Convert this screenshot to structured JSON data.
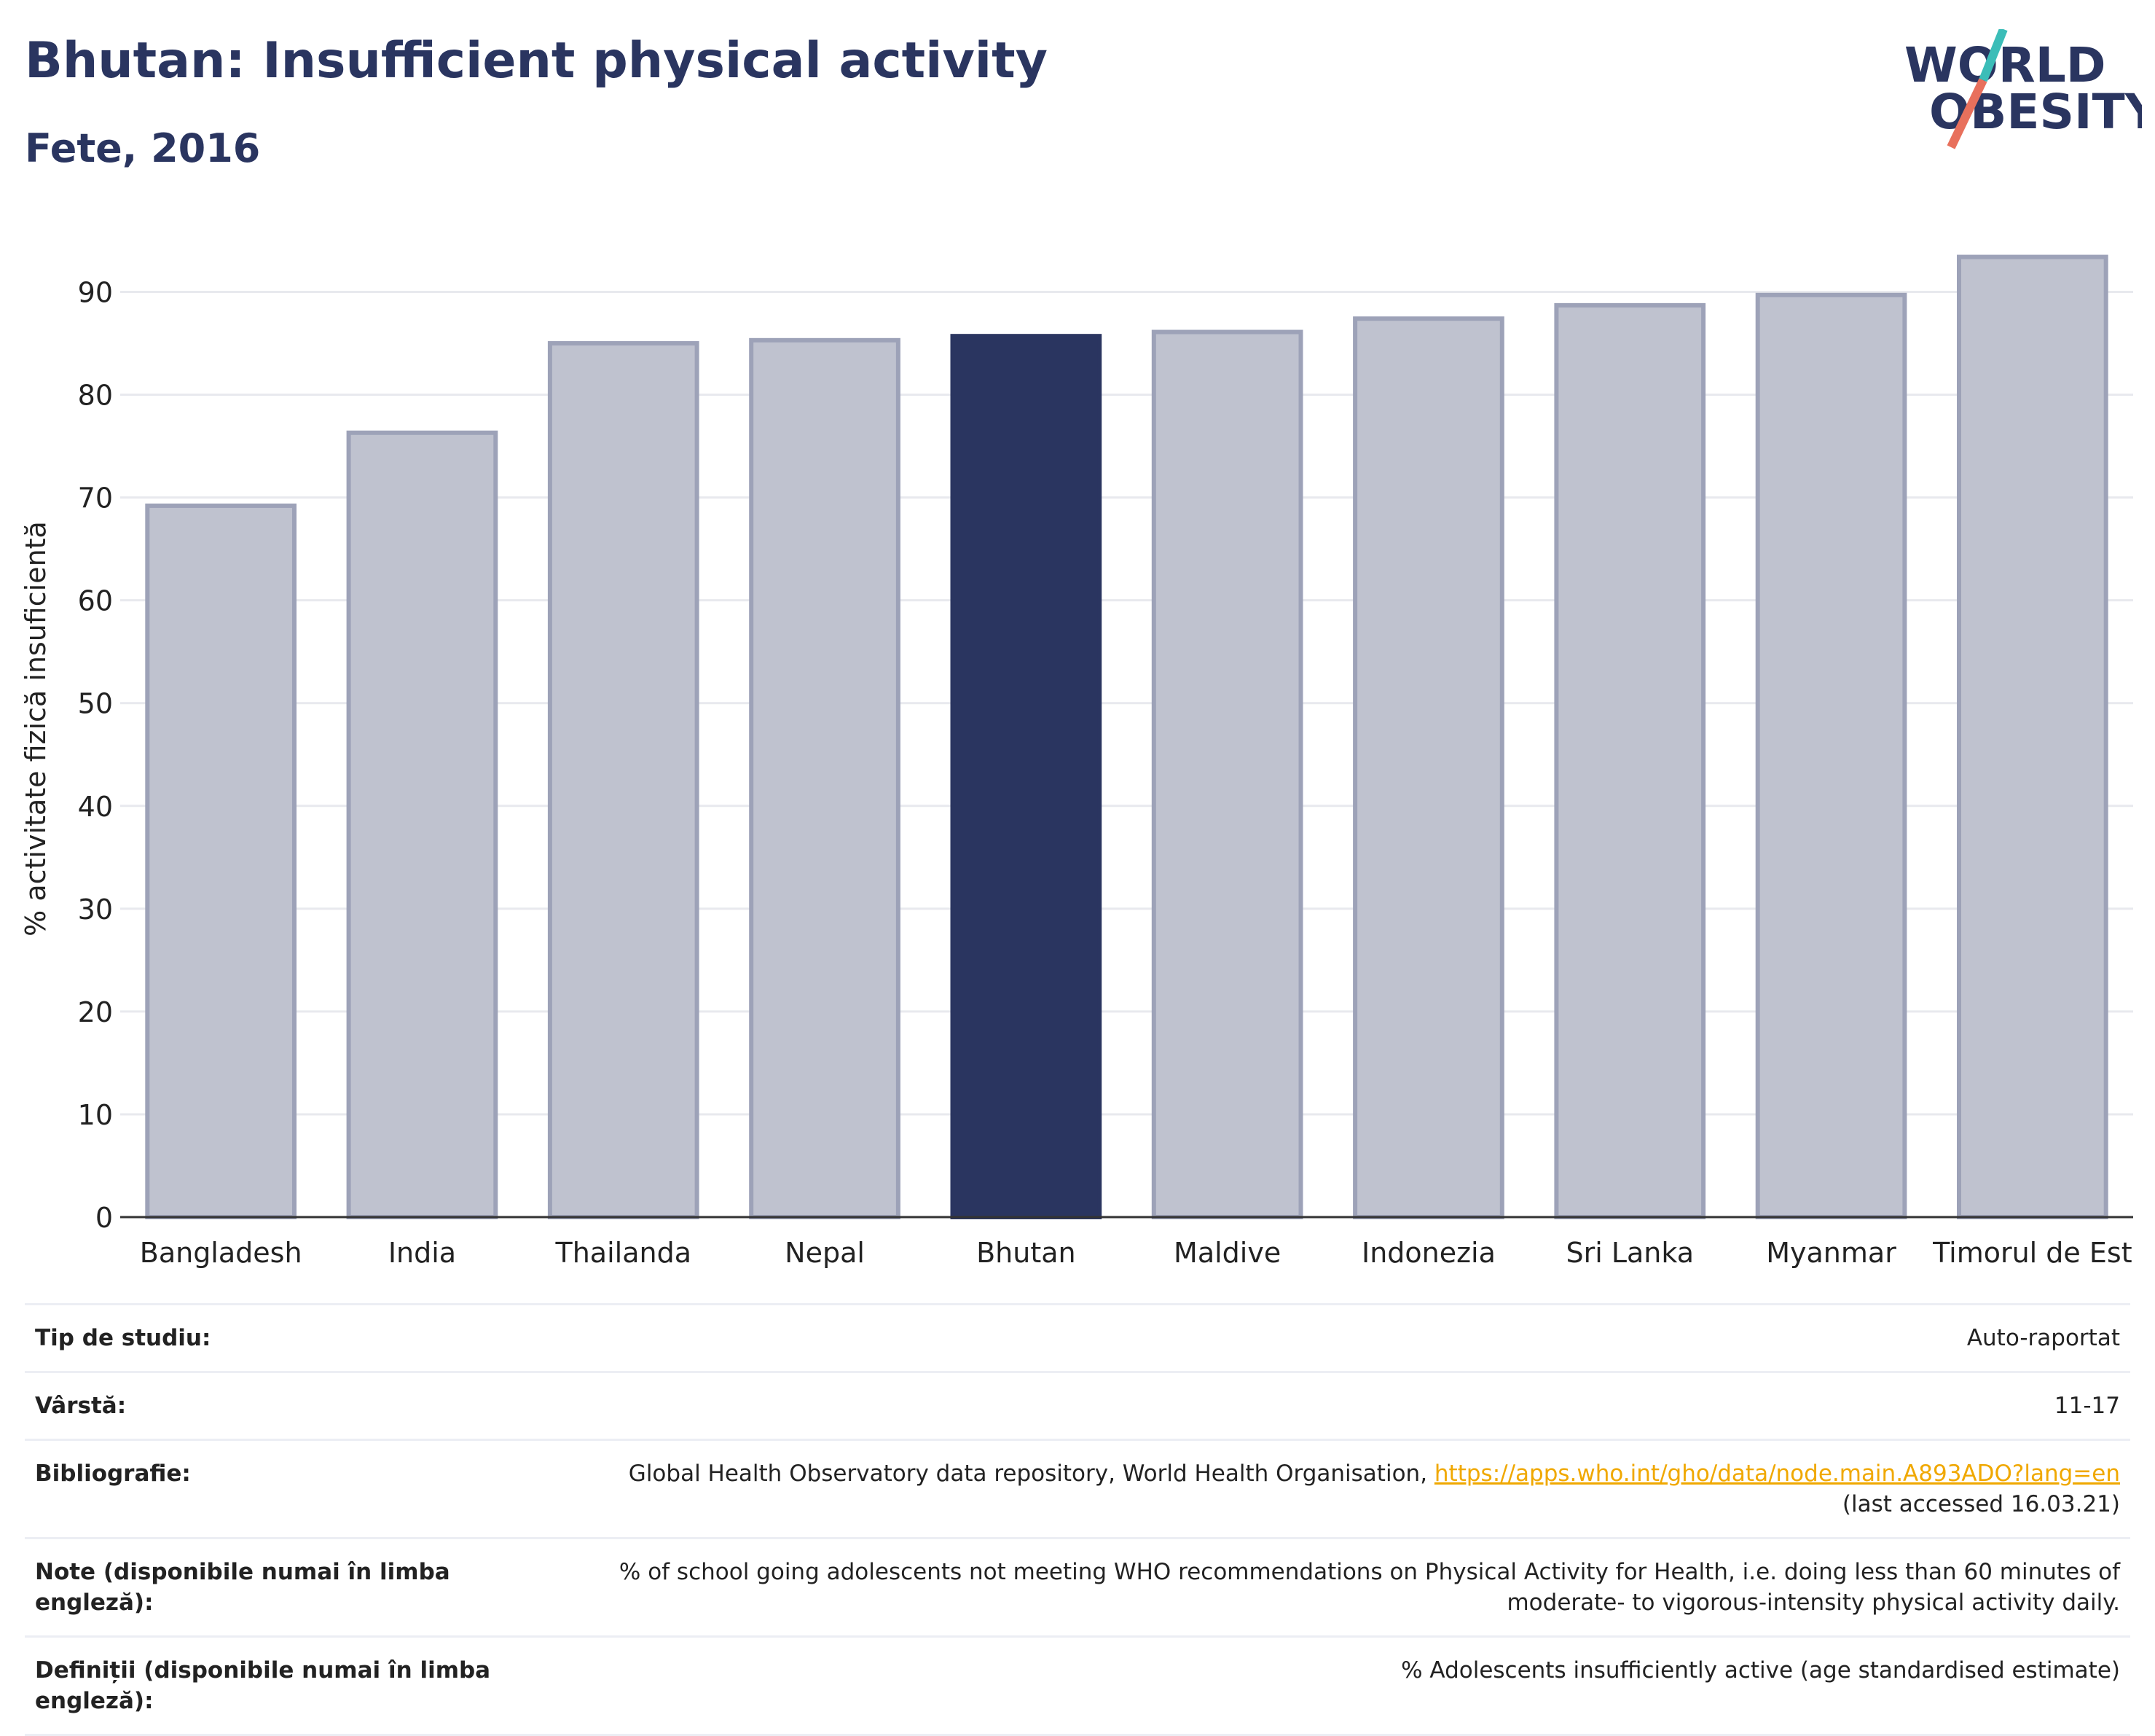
{
  "header": {
    "title": "Bhutan: Insufficient physical activity",
    "subtitle": "Fete, 2016"
  },
  "logo": {
    "line1": "WORLD",
    "line2": "OBESITY"
  },
  "colors": {
    "highlight": "#2a3560",
    "bar": "#bfc2cf",
    "bar_edge": "#9da2b8",
    "grid": "#e8e9ee",
    "link": "#f0a800"
  },
  "chart_data": {
    "type": "bar",
    "ylabel": "% activitate fizică insuficientă",
    "categories": [
      "Bangladesh",
      "India",
      "Thailanda",
      "Nepal",
      "Bhutan",
      "Maldive",
      "Indonezia",
      "Sri Lanka",
      "Myanmar",
      "Timorul de Est"
    ],
    "values": [
      69.2,
      76.3,
      85.0,
      85.3,
      85.7,
      86.1,
      87.4,
      88.7,
      89.7,
      93.4
    ],
    "highlight": "Bhutan",
    "ylim": [
      0,
      95
    ],
    "yticks": [
      0,
      10,
      20,
      30,
      40,
      50,
      60,
      70,
      80,
      90
    ],
    "grid": true
  },
  "info": {
    "study_type": {
      "label": "Tip de studiu:",
      "value": "Auto-raportat"
    },
    "age": {
      "label": "Vârstă:",
      "value": "11-17"
    },
    "bibliography": {
      "label": "Bibliografie:",
      "text": "Global Health Observatory data repository, World Health Organisation,",
      "link": "https://apps.who.int/gho/data/node.main.A893ADO?lang=en",
      "note": "(last accessed 16.03.21)"
    },
    "notes": {
      "label": "Note (disponibile numai în limba engleză):",
      "value": "% of school going adolescents not meeting WHO recommendations on Physical Activity for Health, i.e. doing less than 60 minutes of moderate- to vigorous-intensity physical activity daily."
    },
    "definitions": {
      "label": "Definiții (disponibile numai în limba engleză):",
      "value": "% Adolescents insufficiently active (age standardised estimate)"
    }
  }
}
